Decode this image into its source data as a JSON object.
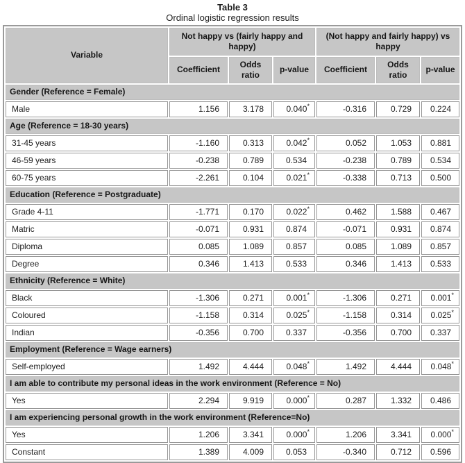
{
  "title": "Table 3",
  "subtitle": "Ordinal logistic regression results",
  "colors": {
    "header_gray": "#c6c6c6",
    "cell_border_gray": "#969696",
    "outer_border_gray": "#9a9a9a",
    "text": "#1c1c1c"
  },
  "table": {
    "variable_header": "Variable",
    "group_headers": [
      "Not happy vs (fairly happy and happy)",
      "(Not happy and fairly happy) vs happy"
    ],
    "sub_headers": [
      "Coefficient",
      "Odds ratio",
      "p-value",
      "Coefficient",
      "Odds ratio",
      "p-value"
    ],
    "sections": [
      {
        "header": "Gender (Reference = Female)",
        "rows": [
          {
            "label": "Male",
            "values": [
              "1.156",
              "3.178",
              "0.040*",
              "-0.316",
              "0.729",
              "0.224"
            ]
          }
        ]
      },
      {
        "header": "Age (Reference = 18-30 years)",
        "rows": [
          {
            "label": "31-45 years",
            "values": [
              "-1.160",
              "0.313",
              "0.042*",
              "0.052",
              "1.053",
              "0.881"
            ]
          },
          {
            "label": "46-59 years",
            "values": [
              "-0.238",
              "0.789",
              "0.534",
              "-0.238",
              "0.789",
              "0.534"
            ]
          },
          {
            "label": "60-75 years",
            "values": [
              "-2.261",
              "0.104",
              "0.021*",
              "-0.338",
              "0.713",
              "0.500"
            ]
          }
        ]
      },
      {
        "header": "Education (Reference = Postgraduate)",
        "rows": [
          {
            "label": "Grade 4-11",
            "values": [
              "-1.771",
              "0.170",
              "0.022*",
              "0.462",
              "1.588",
              "0.467"
            ]
          },
          {
            "label": "Matric",
            "values": [
              "-0.071",
              "0.931",
              "0.874",
              "-0.071",
              "0.931",
              "0.874"
            ]
          },
          {
            "label": "Diploma",
            "values": [
              "0.085",
              "1.089",
              "0.857",
              "0.085",
              "1.089",
              "0.857"
            ]
          },
          {
            "label": "Degree",
            "values": [
              "0.346",
              "1.413",
              "0.533",
              "0.346",
              "1.413",
              "0.533"
            ]
          }
        ]
      },
      {
        "header": "Ethnicity (Reference = White)",
        "rows": [
          {
            "label": "Black",
            "values": [
              "-1.306",
              "0.271",
              "0.001*",
              "-1.306",
              "0.271",
              "0.001*"
            ]
          },
          {
            "label": "Coloured",
            "values": [
              "-1.158",
              "0.314",
              "0.025*",
              "-1.158",
              "0.314",
              "0.025*"
            ]
          },
          {
            "label": "Indian",
            "values": [
              "-0.356",
              "0.700",
              "0.337",
              "-0.356",
              "0.700",
              "0.337"
            ]
          }
        ]
      },
      {
        "header": "Employment (Reference = Wage earners)",
        "rows": [
          {
            "label": "Self-employed",
            "values": [
              "1.492",
              "4.444",
              "0.048*",
              "1.492",
              "4.444",
              "0.048*"
            ]
          }
        ]
      },
      {
        "header": "I am able to contribute my personal ideas in the work environment (Reference = No)",
        "rows": [
          {
            "label": "Yes",
            "values": [
              "2.294",
              "9.919",
              "0.000*",
              "0.287",
              "1.332",
              "0.486"
            ]
          }
        ]
      },
      {
        "header": "I am experiencing personal growth in the work environment (Reference=No)",
        "rows": [
          {
            "label": "Yes",
            "values": [
              "1.206",
              "3.341",
              "0.000*",
              "1.206",
              "3.341",
              "0.000*"
            ]
          },
          {
            "label": "Constant",
            "values": [
              "1.389",
              "4.009",
              "0.053",
              "-0.340",
              "0.712",
              "0.596"
            ]
          }
        ]
      }
    ]
  }
}
